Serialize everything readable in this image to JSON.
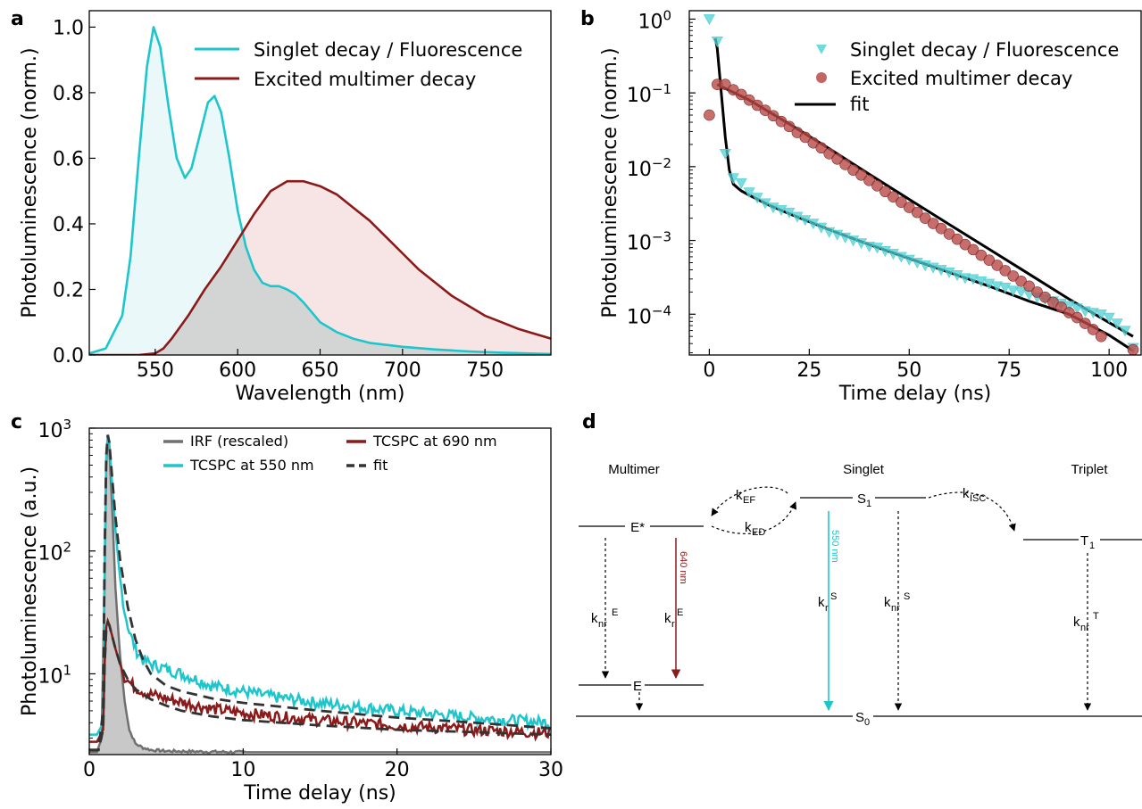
{
  "panels": {
    "a": "a",
    "b": "b",
    "c": "c",
    "d": "d"
  },
  "chart_data": [
    {
      "id": "a",
      "type": "area",
      "xlabel": "Wavelength (nm)",
      "ylabel": "Photoluminescence (norm.)",
      "xlim": [
        510,
        790
      ],
      "ylim": [
        0,
        1.05
      ],
      "xticks": [
        550,
        600,
        650,
        700,
        750
      ],
      "yticks": [
        0.0,
        0.2,
        0.4,
        0.6,
        0.8,
        1.0
      ],
      "ytick_labels": [
        "0.0",
        "0.2",
        "0.4",
        "0.6",
        "0.8",
        "1.0"
      ],
      "legend_position": "top-right",
      "series": [
        {
          "name": "Singlet decay / Fluorescence",
          "color": "#1ec6cc",
          "fill": "#e6f7f8",
          "x": [
            510,
            520,
            530,
            535,
            540,
            545,
            549,
            553,
            558,
            563,
            568,
            572,
            577,
            582,
            586,
            590,
            595,
            600,
            605,
            610,
            615,
            620,
            625,
            630,
            635,
            640,
            645,
            650,
            660,
            670,
            680,
            700,
            720,
            740,
            760,
            790
          ],
          "y": [
            0.005,
            0.02,
            0.12,
            0.3,
            0.6,
            0.88,
            1.0,
            0.94,
            0.76,
            0.6,
            0.54,
            0.57,
            0.67,
            0.77,
            0.79,
            0.74,
            0.6,
            0.44,
            0.33,
            0.26,
            0.22,
            0.21,
            0.21,
            0.2,
            0.185,
            0.16,
            0.13,
            0.1,
            0.07,
            0.05,
            0.037,
            0.025,
            0.017,
            0.011,
            0.007,
            0.003
          ]
        },
        {
          "name": "Excited multimer decay",
          "color": "#8b1a1a",
          "fill": "#f6e0e0",
          "x": [
            510,
            540,
            550,
            555,
            560,
            570,
            580,
            590,
            600,
            610,
            620,
            630,
            640,
            650,
            660,
            670,
            680,
            690,
            700,
            710,
            720,
            730,
            740,
            750,
            760,
            770,
            780,
            790
          ],
          "y": [
            0.0,
            0.0,
            0.005,
            0.02,
            0.05,
            0.12,
            0.2,
            0.27,
            0.35,
            0.43,
            0.5,
            0.53,
            0.53,
            0.515,
            0.49,
            0.45,
            0.41,
            0.36,
            0.31,
            0.26,
            0.22,
            0.18,
            0.15,
            0.12,
            0.1,
            0.08,
            0.065,
            0.05
          ]
        }
      ]
    },
    {
      "id": "b",
      "type": "scatter",
      "xlabel": "Time delay (ns)",
      "ylabel": "Photoluminescence (norm.)",
      "xlim": [
        -5,
        108
      ],
      "ylog": true,
      "ylim": [
        2.8e-05,
        1.3
      ],
      "xticks": [
        0,
        25,
        50,
        75,
        100
      ],
      "yticks": [
        1,
        0.1,
        0.01,
        0.001,
        0.0001
      ],
      "ytick_labels": [
        {
          "base": "10",
          "exp": "0"
        },
        {
          "base": "10",
          "exp": "−1"
        },
        {
          "base": "10",
          "exp": "−2"
        },
        {
          "base": "10",
          "exp": "−3"
        },
        {
          "base": "10",
          "exp": "−4"
        }
      ],
      "legend_position": "top-right",
      "series": [
        {
          "name": "Singlet decay / Fluorescence",
          "marker": "triangle-down",
          "color": "#4fd0d4",
          "x": [
            0,
            2,
            4,
            6,
            8,
            10,
            12,
            14,
            16,
            18,
            20,
            22,
            24,
            26,
            28,
            30,
            32,
            34,
            36,
            38,
            40,
            42,
            44,
            46,
            48,
            50,
            52,
            54,
            56,
            58,
            60,
            62,
            64,
            66,
            68,
            70,
            72,
            74,
            76,
            78,
            80,
            82,
            84,
            86,
            88,
            90,
            92,
            94,
            96,
            98,
            100,
            102,
            104,
            106
          ],
          "y": [
            1.0,
            0.5,
            0.015,
            0.007,
            0.006,
            0.0045,
            0.0038,
            0.0032,
            0.0028,
            0.0026,
            0.0024,
            0.0021,
            0.0019,
            0.0017,
            0.0015,
            0.0013,
            0.0012,
            0.0011,
            0.001,
            0.00092,
            0.00083,
            0.0008,
            0.00072,
            0.00066,
            0.0006,
            0.00055,
            0.0005,
            0.00046,
            0.00043,
            0.0004,
            0.00037,
            0.00034,
            0.00031,
            0.0003,
            0.00028,
            0.00026,
            0.00024,
            0.00023,
            0.00021,
            0.0002,
            0.000185,
            0.00017,
            0.00016,
            0.00015,
            0.00014,
            0.00013,
            0.00012,
            0.00011,
            0.000105,
            0.0001,
            9e-05,
            7.5e-05,
            6e-05,
            3.5e-05
          ]
        },
        {
          "name": "Excited multimer decay",
          "marker": "circle",
          "color": "#b94a48",
          "x": [
            0,
            2,
            4,
            6,
            8,
            10,
            12,
            14,
            16,
            18,
            20,
            22,
            24,
            26,
            28,
            30,
            32,
            34,
            36,
            38,
            40,
            42,
            44,
            46,
            48,
            50,
            52,
            54,
            56,
            58,
            60,
            62,
            64,
            66,
            68,
            70,
            72,
            74,
            76,
            78,
            80,
            82,
            84,
            86,
            88,
            90,
            92,
            94,
            96,
            98,
            106
          ],
          "y": [
            0.05,
            0.13,
            0.13,
            0.11,
            0.095,
            0.08,
            0.068,
            0.058,
            0.049,
            0.041,
            0.035,
            0.029,
            0.025,
            0.021,
            0.018,
            0.015,
            0.0127,
            0.0107,
            0.009,
            0.0077,
            0.0065,
            0.0055,
            0.0046,
            0.0039,
            0.0033,
            0.0028,
            0.0024,
            0.002,
            0.0017,
            0.00145,
            0.00122,
            0.00104,
            0.00088,
            0.00075,
            0.00063,
            0.00054,
            0.00046,
            0.00039,
            0.00033,
            0.00028,
            0.00024,
            0.0002,
            0.00017,
            0.000145,
            0.000125,
            0.000105,
            9e-05,
            7.5e-05,
            6.2e-05,
            5e-05,
            3.3e-05
          ]
        },
        {
          "name": "fit",
          "type": "line",
          "color": "#000000",
          "segments": [
            {
              "x": [
                1.5,
                2,
                3,
                4,
                5,
                6,
                7,
                8,
                10,
                15,
                20,
                30,
                40,
                50,
                60,
                70,
                80,
                90,
                100,
                106
              ],
              "y": [
                0.55,
                0.4,
                0.1,
                0.025,
                0.009,
                0.0058,
                0.0052,
                0.0047,
                0.0041,
                0.003,
                0.0023,
                0.0014,
                0.00088,
                0.00057,
                0.00037,
                0.00024,
                0.00015,
                0.0001,
                5.2e-05,
                3.2e-05
              ]
            },
            {
              "x": [
                2,
                10,
                20,
                30,
                40,
                50,
                60,
                70,
                80,
                90,
                100,
                106
              ],
              "y": [
                0.13,
                0.08,
                0.038,
                0.0175,
                0.0079,
                0.0036,
                0.00165,
                0.00076,
                0.00035,
                0.00016,
                7.7e-05,
                5e-05
              ]
            }
          ]
        }
      ]
    },
    {
      "id": "c",
      "type": "line",
      "xlabel": "Time delay (ns)",
      "ylabel": "Photoluminescence (a.u.)",
      "xlim": [
        0,
        30
      ],
      "ylog": true,
      "ylim": [
        2.2,
        1000
      ],
      "xticks": [
        0,
        10,
        20,
        30
      ],
      "yticks": [
        10,
        100,
        1000
      ],
      "ytick_labels": [
        {
          "base": "10",
          "exp": "1"
        },
        {
          "base": "10",
          "exp": "2"
        },
        {
          "base": "10",
          "exp": "3"
        }
      ],
      "legend_position": "top-right",
      "series": [
        {
          "name": "IRF (rescaled)",
          "color": "#707070",
          "fill": "#c8c8c8",
          "x": [
            0,
            0.5,
            0.8,
            1.0,
            1.1,
            1.2,
            1.3,
            1.5,
            1.7,
            2.0,
            2.3,
            2.6,
            3.0,
            3.5,
            4.0,
            5.0,
            10.0,
            30.0
          ],
          "y": [
            2.3,
            2.3,
            3.0,
            60,
            500,
            850,
            700,
            200,
            50,
            14,
            6,
            3.5,
            2.7,
            2.5,
            2.4,
            2.35,
            2.3,
            2.3
          ]
        },
        {
          "name": "TCSPC at 550 nm",
          "color": "#1ec6cc",
          "x": [
            0,
            0.5,
            0.9,
            1.0,
            1.1,
            1.2,
            1.3,
            1.5,
            1.7,
            2.0,
            2.3,
            2.6,
            3.0,
            3.5,
            4.0,
            5.0,
            6,
            7,
            8,
            10,
            12,
            15,
            20,
            25,
            30
          ],
          "y": [
            3.2,
            3.2,
            4,
            80,
            600,
            870,
            750,
            330,
            150,
            60,
            32,
            22,
            16,
            13,
            12,
            11,
            10,
            9,
            8,
            7.2,
            6.5,
            5.8,
            5.0,
            4.4,
            4.0
          ]
        },
        {
          "name": "TCSPC at 690 nm",
          "color": "#8b1a1a",
          "x": [
            0,
            0.5,
            0.9,
            1.0,
            1.1,
            1.2,
            1.3,
            1.5,
            1.7,
            2.0,
            2.3,
            2.6,
            3.0,
            3.5,
            4.0,
            5.0,
            6,
            8,
            10,
            15,
            20,
            25,
            30
          ],
          "y": [
            2.8,
            2.8,
            3.5,
            12,
            24,
            27,
            25,
            20,
            16,
            12,
            9.5,
            8.5,
            7.8,
            7.2,
            6.8,
            6.3,
            5.9,
            5.2,
            4.8,
            4.2,
            3.8,
            3.5,
            3.3
          ]
        },
        {
          "name": "fit",
          "color": "#333333",
          "dash": true,
          "segments": [
            {
              "x": [
                0,
                0.6,
                0.9,
                1.0,
                1.1,
                1.2,
                1.3,
                1.5,
                1.7,
                2.0,
                2.5,
                3.0,
                3.5,
                4,
                5,
                6,
                8,
                10,
                15,
                20,
                25,
                30
              ],
              "y": [
                2.4,
                2.4,
                5,
                100,
                600,
                880,
                770,
                380,
                190,
                85,
                35,
                19,
                13,
                10,
                8,
                7.2,
                6.3,
                5.8,
                5,
                4.4,
                4,
                3.6
              ]
            },
            {
              "x": [
                0,
                0.6,
                0.9,
                1.0,
                1.1,
                1.2,
                1.3,
                1.5,
                1.7,
                2.0,
                2.5,
                3.0,
                4,
                5,
                6,
                8,
                10,
                15,
                20,
                25,
                30
              ],
              "y": [
                2.4,
                2.4,
                3.5,
                12,
                23,
                26,
                25,
                20,
                16,
                12,
                9,
                7.5,
                6.2,
                5.5,
                5,
                4.5,
                4.2,
                3.8,
                3.5,
                3.35,
                3.2
              ]
            }
          ]
        }
      ]
    }
  ],
  "diagram": {
    "headers": {
      "multimer": "Multimer",
      "singlet": "Singlet",
      "triplet": "Triplet"
    },
    "states": {
      "e_star": "E*",
      "e": "E",
      "s1": {
        "base": "S",
        "sub": "1"
      },
      "t1": {
        "base": "T",
        "sub": "1"
      },
      "s0": {
        "base": "S",
        "sub": "0"
      }
    },
    "rates": {
      "kEF": {
        "base": "k",
        "sub": "EF"
      },
      "kED": {
        "base": "k",
        "sub": "ED"
      },
      "kISC": {
        "base": "k",
        "sub": "ISC"
      },
      "knrE": {
        "base": "k",
        "sub": "nr",
        "sup": "E"
      },
      "krE": {
        "base": "k",
        "sub": "r",
        "sup": "E"
      },
      "krS": {
        "base": "k",
        "sub": "r",
        "sup": "S"
      },
      "knrS": {
        "base": "k",
        "sub": "nr",
        "sup": "S"
      },
      "knrT": {
        "base": "k",
        "sub": "nr",
        "sup": "T"
      }
    },
    "wavelengths": {
      "e": "640 nm",
      "s": "550 nm"
    },
    "colors": {
      "cyan": "#1ec6cc",
      "red": "#8b1a1a"
    }
  }
}
